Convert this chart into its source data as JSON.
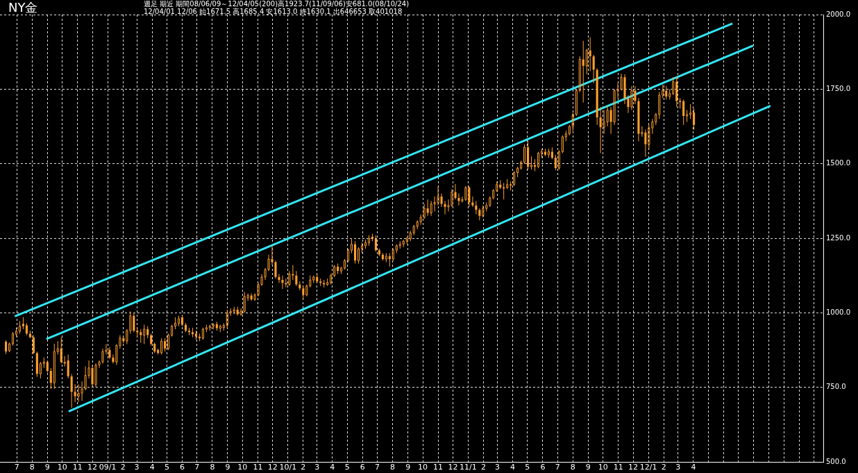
{
  "chart_data": {
    "type": "candlestick",
    "title": "NY金",
    "subtitle": "週足 期近 期間08/06/09～12/04/05(200)高1923.7(11/09/06)安681.0(08/10/24)",
    "annotations": [
      "12/04/01 12/06 始1671.5 高1685.4 安1613.0 終1630.1 出646653 取401018"
    ],
    "color": "#ffa030",
    "x": [
      "2008-06-09",
      "2008-06-16",
      "2008-06-23",
      "2008-06-30",
      "2008-07-07",
      "2008-07-14",
      "2008-07-21",
      "2008-07-28",
      "2008-08-04",
      "2008-08-11",
      "2008-08-18",
      "2008-08-25",
      "2008-09-01",
      "2008-09-08",
      "2008-09-15",
      "2008-09-22",
      "2008-09-29",
      "2008-10-06",
      "2008-10-13",
      "2008-10-20",
      "2008-10-27",
      "2008-11-03",
      "2008-11-10",
      "2008-11-17",
      "2008-11-24",
      "2008-12-01",
      "2008-12-08",
      "2008-12-15",
      "2008-12-22",
      "2008-12-29",
      "2009-01-05",
      "2009-01-12",
      "2009-01-19",
      "2009-01-26",
      "2009-02-02",
      "2009-02-09",
      "2009-02-16",
      "2009-02-23",
      "2009-03-02",
      "2009-03-09",
      "2009-03-16",
      "2009-03-23",
      "2009-03-30",
      "2009-04-06",
      "2009-04-13",
      "2009-04-20",
      "2009-04-27",
      "2009-05-04",
      "2009-05-11",
      "2009-05-18",
      "2009-05-25",
      "2009-06-01",
      "2009-06-08",
      "2009-06-15",
      "2009-06-22",
      "2009-06-29",
      "2009-07-06",
      "2009-07-13",
      "2009-07-20",
      "2009-07-27",
      "2009-08-03",
      "2009-08-10",
      "2009-08-17",
      "2009-08-24",
      "2009-08-31",
      "2009-09-07",
      "2009-09-14",
      "2009-09-21",
      "2009-09-28",
      "2009-10-05",
      "2009-10-12",
      "2009-10-19",
      "2009-10-26",
      "2009-11-02",
      "2009-11-09",
      "2009-11-16",
      "2009-11-23",
      "2009-11-30",
      "2009-12-07",
      "2009-12-14",
      "2009-12-21",
      "2009-12-28",
      "2010-01-04",
      "2010-01-11",
      "2010-01-18",
      "2010-01-25",
      "2010-02-01",
      "2010-02-08",
      "2010-02-15",
      "2010-02-22",
      "2010-03-01",
      "2010-03-08",
      "2010-03-15",
      "2010-03-22",
      "2010-03-29",
      "2010-04-05",
      "2010-04-12",
      "2010-04-19",
      "2010-04-26",
      "2010-05-03",
      "2010-05-10",
      "2010-05-17",
      "2010-05-24",
      "2010-05-31",
      "2010-06-07",
      "2010-06-14",
      "2010-06-21",
      "2010-06-28",
      "2010-07-05",
      "2010-07-12",
      "2010-07-19",
      "2010-07-26",
      "2010-08-02",
      "2010-08-09",
      "2010-08-16",
      "2010-08-23",
      "2010-08-30",
      "2010-09-06",
      "2010-09-13",
      "2010-09-20",
      "2010-09-27",
      "2010-10-04",
      "2010-10-11",
      "2010-10-18",
      "2010-10-25",
      "2010-11-01",
      "2010-11-08",
      "2010-11-15",
      "2010-11-22",
      "2010-11-29",
      "2010-12-06",
      "2010-12-13",
      "2010-12-20",
      "2010-12-27",
      "2011-01-03",
      "2011-01-10",
      "2011-01-17",
      "2011-01-24",
      "2011-01-31",
      "2011-02-07",
      "2011-02-14",
      "2011-02-21",
      "2011-02-28",
      "2011-03-07",
      "2011-03-14",
      "2011-03-21",
      "2011-03-28",
      "2011-04-04",
      "2011-04-11",
      "2011-04-18",
      "2011-04-25",
      "2011-05-02",
      "2011-05-09",
      "2011-05-16",
      "2011-05-23",
      "2011-05-30",
      "2011-06-06",
      "2011-06-13",
      "2011-06-20",
      "2011-06-27",
      "2011-07-04",
      "2011-07-11",
      "2011-07-18",
      "2011-07-25",
      "2011-08-01",
      "2011-08-08",
      "2011-08-15",
      "2011-08-22",
      "2011-08-29",
      "2011-09-05",
      "2011-09-12",
      "2011-09-19",
      "2011-09-26",
      "2011-10-03",
      "2011-10-10",
      "2011-10-17",
      "2011-10-24",
      "2011-10-31",
      "2011-11-07",
      "2011-11-14",
      "2011-11-21",
      "2011-11-28",
      "2011-12-05",
      "2011-12-12",
      "2011-12-19",
      "2011-12-26",
      "2012-01-02",
      "2012-01-09",
      "2012-01-16",
      "2012-01-23",
      "2012-01-30",
      "2012-02-06",
      "2012-02-13",
      "2012-02-20",
      "2012-02-27",
      "2012-03-05",
      "2012-03-12",
      "2012-03-19",
      "2012-03-26",
      "2012-04-02"
    ],
    "ohlc": [
      [
        903,
        908,
        862,
        870
      ],
      [
        873,
        900,
        868,
        896
      ],
      [
        896,
        935,
        890,
        930
      ],
      [
        928,
        950,
        920,
        938
      ],
      [
        938,
        972,
        930,
        955
      ],
      [
        963,
        986,
        945,
        955
      ],
      [
        958,
        965,
        925,
        930
      ],
      [
        930,
        940,
        915,
        918
      ],
      [
        918,
        925,
        862,
        865
      ],
      [
        865,
        870,
        785,
        795
      ],
      [
        795,
        835,
        780,
        830
      ],
      [
        830,
        850,
        815,
        835
      ],
      [
        835,
        840,
        800,
        805
      ],
      [
        805,
        815,
        745,
        765
      ],
      [
        765,
        896,
        745,
        870
      ],
      [
        870,
        905,
        860,
        880
      ],
      [
        880,
        918,
        830,
        835
      ],
      [
        835,
        855,
        820,
        830
      ],
      [
        840,
        860,
        780,
        787
      ],
      [
        787,
        795,
        681,
        735
      ],
      [
        735,
        760,
        700,
        720
      ],
      [
        720,
        760,
        700,
        730
      ],
      [
        730,
        770,
        705,
        745
      ],
      [
        745,
        820,
        740,
        790
      ],
      [
        790,
        840,
        780,
        815
      ],
      [
        815,
        825,
        750,
        760
      ],
      [
        760,
        830,
        750,
        825
      ],
      [
        825,
        840,
        815,
        835
      ],
      [
        835,
        880,
        830,
        870
      ],
      [
        870,
        895,
        860,
        875
      ],
      [
        875,
        885,
        845,
        850
      ],
      [
        850,
        860,
        830,
        835
      ],
      [
        835,
        895,
        825,
        890
      ],
      [
        890,
        925,
        880,
        915
      ],
      [
        915,
        920,
        898,
        905
      ],
      [
        905,
        945,
        895,
        940
      ],
      [
        940,
        1005,
        930,
        990
      ],
      [
        990,
        1000,
        935,
        940
      ],
      [
        940,
        950,
        920,
        935
      ],
      [
        935,
        945,
        900,
        925
      ],
      [
        925,
        960,
        895,
        945
      ],
      [
        945,
        955,
        915,
        925
      ],
      [
        925,
        930,
        890,
        896
      ],
      [
        896,
        900,
        865,
        870
      ],
      [
        875,
        880,
        860,
        865
      ],
      [
        866,
        915,
        860,
        905
      ],
      [
        905,
        915,
        870,
        880
      ],
      [
        880,
        930,
        875,
        925
      ],
      [
        925,
        960,
        920,
        955
      ],
      [
        955,
        985,
        945,
        965
      ],
      [
        965,
        990,
        955,
        980
      ],
      [
        985,
        990,
        955,
        960
      ],
      [
        960,
        965,
        935,
        940
      ],
      [
        940,
        950,
        925,
        935
      ],
      [
        935,
        950,
        918,
        928
      ],
      [
        930,
        940,
        910,
        920
      ],
      [
        920,
        930,
        905,
        915
      ],
      [
        915,
        950,
        910,
        945
      ],
      [
        945,
        960,
        935,
        950
      ],
      [
        950,
        960,
        940,
        955
      ],
      [
        955,
        965,
        945,
        960
      ],
      [
        962,
        970,
        940,
        948
      ],
      [
        948,
        960,
        935,
        955
      ],
      [
        950,
        965,
        940,
        958
      ],
      [
        958,
        1010,
        950,
        1000
      ],
      [
        1000,
        1015,
        990,
        1005
      ],
      [
        1005,
        1020,
        995,
        1010
      ],
      [
        1010,
        1020,
        990,
        995
      ],
      [
        995,
        1015,
        990,
        1005
      ],
      [
        1005,
        1070,
        1000,
        1055
      ],
      [
        1050,
        1065,
        1040,
        1058
      ],
      [
        1058,
        1065,
        1040,
        1045
      ],
      [
        1045,
        1065,
        1040,
        1060
      ],
      [
        1060,
        1100,
        1055,
        1095
      ],
      [
        1095,
        1130,
        1090,
        1120
      ],
      [
        1120,
        1150,
        1110,
        1145
      ],
      [
        1145,
        1195,
        1140,
        1180
      ],
      [
        1180,
        1227,
        1160,
        1170
      ],
      [
        1170,
        1175,
        1115,
        1120
      ],
      [
        1120,
        1130,
        1100,
        1110
      ],
      [
        1110,
        1125,
        1080,
        1100
      ],
      [
        1100,
        1115,
        1085,
        1095
      ],
      [
        1095,
        1140,
        1090,
        1130
      ],
      [
        1130,
        1160,
        1110,
        1125
      ],
      [
        1125,
        1140,
        1090,
        1095
      ],
      [
        1095,
        1105,
        1075,
        1082
      ],
      [
        1082,
        1090,
        1045,
        1060
      ],
      [
        1060,
        1095,
        1055,
        1090
      ],
      [
        1090,
        1125,
        1085,
        1110
      ],
      [
        1110,
        1125,
        1100,
        1120
      ],
      [
        1120,
        1130,
        1100,
        1105
      ],
      [
        1105,
        1115,
        1090,
        1100
      ],
      [
        1100,
        1110,
        1085,
        1095
      ],
      [
        1095,
        1115,
        1090,
        1102
      ],
      [
        1102,
        1130,
        1095,
        1125
      ],
      [
        1125,
        1160,
        1120,
        1155
      ],
      [
        1155,
        1165,
        1130,
        1140
      ],
      [
        1140,
        1155,
        1130,
        1150
      ],
      [
        1150,
        1180,
        1145,
        1175
      ],
      [
        1175,
        1215,
        1170,
        1210
      ],
      [
        1210,
        1250,
        1200,
        1230
      ],
      [
        1230,
        1240,
        1165,
        1175
      ],
      [
        1175,
        1220,
        1165,
        1215
      ],
      [
        1215,
        1235,
        1200,
        1225
      ],
      [
        1225,
        1245,
        1215,
        1235
      ],
      [
        1235,
        1260,
        1225,
        1250
      ],
      [
        1255,
        1265,
        1240,
        1248
      ],
      [
        1248,
        1260,
        1205,
        1210
      ],
      [
        1210,
        1215,
        1190,
        1195
      ],
      [
        1195,
        1200,
        1175,
        1180
      ],
      [
        1180,
        1200,
        1170,
        1190
      ],
      [
        1190,
        1200,
        1155,
        1180
      ],
      [
        1180,
        1215,
        1175,
        1210
      ],
      [
        1210,
        1230,
        1200,
        1225
      ],
      [
        1225,
        1240,
        1215,
        1230
      ],
      [
        1230,
        1245,
        1220,
        1240
      ],
      [
        1240,
        1255,
        1230,
        1248
      ],
      [
        1248,
        1275,
        1240,
        1268
      ],
      [
        1268,
        1295,
        1260,
        1290
      ],
      [
        1290,
        1310,
        1280,
        1305
      ],
      [
        1305,
        1330,
        1295,
        1320
      ],
      [
        1320,
        1365,
        1315,
        1350
      ],
      [
        1350,
        1380,
        1325,
        1335
      ],
      [
        1335,
        1375,
        1325,
        1365
      ],
      [
        1365,
        1390,
        1340,
        1370
      ],
      [
        1370,
        1425,
        1360,
        1390
      ],
      [
        1390,
        1400,
        1355,
        1365
      ],
      [
        1365,
        1375,
        1330,
        1355
      ],
      [
        1355,
        1380,
        1340,
        1360
      ],
      [
        1360,
        1415,
        1355,
        1405
      ],
      [
        1405,
        1432,
        1380,
        1385
      ],
      [
        1385,
        1400,
        1360,
        1375
      ],
      [
        1375,
        1390,
        1370,
        1380
      ],
      [
        1380,
        1425,
        1375,
        1420
      ],
      [
        1420,
        1425,
        1355,
        1370
      ],
      [
        1370,
        1390,
        1355,
        1360
      ],
      [
        1360,
        1375,
        1330,
        1345
      ],
      [
        1345,
        1350,
        1310,
        1325
      ],
      [
        1325,
        1360,
        1320,
        1350
      ],
      [
        1350,
        1370,
        1340,
        1360
      ],
      [
        1360,
        1390,
        1355,
        1385
      ],
      [
        1385,
        1415,
        1380,
        1410
      ],
      [
        1410,
        1440,
        1405,
        1430
      ],
      [
        1430,
        1445,
        1415,
        1420
      ],
      [
        1420,
        1435,
        1380,
        1420
      ],
      [
        1420,
        1448,
        1415,
        1430
      ],
      [
        1430,
        1440,
        1410,
        1430
      ],
      [
        1430,
        1475,
        1425,
        1470
      ],
      [
        1470,
        1490,
        1455,
        1485
      ],
      [
        1485,
        1510,
        1480,
        1505
      ],
      [
        1505,
        1565,
        1500,
        1555
      ],
      [
        1555,
        1577,
        1480,
        1490
      ],
      [
        1490,
        1525,
        1480,
        1495
      ],
      [
        1495,
        1515,
        1475,
        1490
      ],
      [
        1490,
        1540,
        1485,
        1535
      ],
      [
        1535,
        1550,
        1520,
        1540
      ],
      [
        1540,
        1550,
        1525,
        1530
      ],
      [
        1530,
        1550,
        1520,
        1540
      ],
      [
        1540,
        1555,
        1515,
        1520
      ],
      [
        1520,
        1530,
        1478,
        1485
      ],
      [
        1485,
        1545,
        1480,
        1540
      ],
      [
        1540,
        1595,
        1535,
        1590
      ],
      [
        1590,
        1610,
        1575,
        1600
      ],
      [
        1600,
        1630,
        1595,
        1625
      ],
      [
        1625,
        1670,
        1610,
        1665
      ],
      [
        1665,
        1750,
        1660,
        1745
      ],
      [
        1745,
        1860,
        1740,
        1850
      ],
      [
        1850,
        1912,
        1705,
        1828
      ],
      [
        1828,
        1885,
        1800,
        1880
      ],
      [
        1880,
        1923.7,
        1810,
        1860
      ],
      [
        1860,
        1865,
        1770,
        1815
      ],
      [
        1815,
        1820,
        1630,
        1655
      ],
      [
        1655,
        1690,
        1535,
        1622
      ],
      [
        1622,
        1680,
        1600,
        1640
      ],
      [
        1640,
        1695,
        1625,
        1680
      ],
      [
        1680,
        1690,
        1600,
        1640
      ],
      [
        1640,
        1750,
        1630,
        1745
      ],
      [
        1745,
        1770,
        1720,
        1750
      ],
      [
        1750,
        1802,
        1745,
        1790
      ],
      [
        1790,
        1800,
        1700,
        1720
      ],
      [
        1720,
        1730,
        1670,
        1690
      ],
      [
        1690,
        1760,
        1680,
        1745
      ],
      [
        1745,
        1760,
        1700,
        1710
      ],
      [
        1710,
        1720,
        1575,
        1600
      ],
      [
        1600,
        1625,
        1590,
        1605
      ],
      [
        1605,
        1615,
        1523,
        1565
      ],
      [
        1565,
        1630,
        1550,
        1620
      ],
      [
        1620,
        1650,
        1600,
        1640
      ],
      [
        1640,
        1670,
        1630,
        1665
      ],
      [
        1665,
        1740,
        1650,
        1730
      ],
      [
        1730,
        1765,
        1720,
        1745
      ],
      [
        1745,
        1760,
        1715,
        1725
      ],
      [
        1725,
        1750,
        1715,
        1735
      ],
      [
        1735,
        1790,
        1730,
        1775
      ],
      [
        1775,
        1792,
        1690,
        1710
      ],
      [
        1710,
        1720,
        1685,
        1710
      ],
      [
        1710,
        1715,
        1630,
        1660
      ],
      [
        1660,
        1680,
        1640,
        1665
      ],
      [
        1665,
        1700,
        1650,
        1670
      ],
      [
        1671.5,
        1685.4,
        1613.0,
        1630.1
      ]
    ],
    "series": [
      {
        "type": "line",
        "color": "#33e6f2",
        "x": [
          "2008-06-27",
          "2012-06-19"
        ],
        "values": [
          988,
          1970
        ]
      },
      {
        "type": "line",
        "color": "#33e6f2",
        "x": [
          "2008-08-30",
          "2012-07-31"
        ],
        "values": [
          912,
          1896
        ]
      },
      {
        "type": "line",
        "color": "#33e6f2",
        "x": [
          "2008-10-14",
          "2012-09-04"
        ],
        "values": [
          669,
          1694
        ]
      }
    ],
    "xlim": [
      "2008-05-28",
      "2012-12-20"
    ],
    "xticks": [
      {
        "value": "2008-07-01",
        "label": "7"
      },
      {
        "value": "2008-08-01",
        "label": "8"
      },
      {
        "value": "2008-09-01",
        "label": "9"
      },
      {
        "value": "2008-10-01",
        "label": "10"
      },
      {
        "value": "2008-11-01",
        "label": "11"
      },
      {
        "value": "2008-12-01",
        "label": "12"
      },
      {
        "value": "2009-01-01",
        "label": "09/1"
      },
      {
        "value": "2009-02-01",
        "label": "2"
      },
      {
        "value": "2009-03-01",
        "label": "3"
      },
      {
        "value": "2009-04-01",
        "label": "4"
      },
      {
        "value": "2009-05-01",
        "label": "5"
      },
      {
        "value": "2009-06-01",
        "label": "6"
      },
      {
        "value": "2009-07-01",
        "label": "7"
      },
      {
        "value": "2009-08-01",
        "label": "8"
      },
      {
        "value": "2009-09-01",
        "label": "9"
      },
      {
        "value": "2009-10-01",
        "label": "10"
      },
      {
        "value": "2009-11-01",
        "label": "11"
      },
      {
        "value": "2009-12-01",
        "label": "12"
      },
      {
        "value": "2010-01-01",
        "label": "10/1"
      },
      {
        "value": "2010-02-01",
        "label": "2"
      },
      {
        "value": "2010-03-01",
        "label": "3"
      },
      {
        "value": "2010-04-01",
        "label": "4"
      },
      {
        "value": "2010-05-01",
        "label": "5"
      },
      {
        "value": "2010-06-01",
        "label": "6"
      },
      {
        "value": "2010-07-01",
        "label": "7"
      },
      {
        "value": "2010-08-01",
        "label": "8"
      },
      {
        "value": "2010-09-01",
        "label": "9"
      },
      {
        "value": "2010-10-01",
        "label": "10"
      },
      {
        "value": "2010-11-01",
        "label": "11"
      },
      {
        "value": "2010-12-01",
        "label": "12"
      },
      {
        "value": "2011-01-01",
        "label": "11/1"
      },
      {
        "value": "2011-02-01",
        "label": "2"
      },
      {
        "value": "2011-03-01",
        "label": "3"
      },
      {
        "value": "2011-04-01",
        "label": "4"
      },
      {
        "value": "2011-05-01",
        "label": "5"
      },
      {
        "value": "2011-06-01",
        "label": "6"
      },
      {
        "value": "2011-07-01",
        "label": "7"
      },
      {
        "value": "2011-08-01",
        "label": "8"
      },
      {
        "value": "2011-09-01",
        "label": "9"
      },
      {
        "value": "2011-10-01",
        "label": "10"
      },
      {
        "value": "2011-11-01",
        "label": "11"
      },
      {
        "value": "2011-12-01",
        "label": "12"
      },
      {
        "value": "2012-01-01",
        "label": "12/1"
      },
      {
        "value": "2012-02-01",
        "label": "2"
      },
      {
        "value": "2012-03-01",
        "label": "3"
      },
      {
        "value": "2012-04-01",
        "label": "4"
      },
      {
        "value": "2012-05-01",
        "label": null
      },
      {
        "value": "2012-06-01",
        "label": null
      },
      {
        "value": "2012-07-01",
        "label": null
      },
      {
        "value": "2012-08-01",
        "label": null
      },
      {
        "value": "2012-09-01",
        "label": null
      },
      {
        "value": "2012-10-01",
        "label": null
      },
      {
        "value": "2012-11-01",
        "label": null
      },
      {
        "value": "2012-12-01",
        "label": null
      }
    ],
    "ylim": [
      500,
      2000
    ],
    "yticks": [
      {
        "value": 500,
        "label": "500.0"
      },
      {
        "value": 750,
        "label": "750.0"
      },
      {
        "value": 1000,
        "label": "1000.0"
      },
      {
        "value": 1250,
        "label": "1250.0"
      },
      {
        "value": 1500,
        "label": "1500.0"
      },
      {
        "value": 1750,
        "label": "1750.0"
      },
      {
        "value": 2000,
        "label": "2000.0"
      }
    ],
    "grid": true
  }
}
